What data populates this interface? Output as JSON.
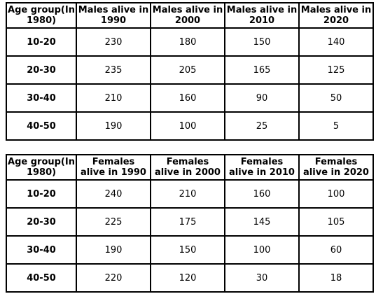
{
  "males_table": {
    "headers": [
      [
        "Age group(In",
        "1980)"
      ],
      [
        "Males alive in",
        "1990"
      ],
      [
        "Males alive in",
        "2000"
      ],
      [
        "Males alive in",
        "2010"
      ],
      [
        "Males alive in",
        "2020"
      ]
    ],
    "rows": [
      {
        "age": "10-20",
        "values": [
          "230",
          "180",
          "150",
          "140"
        ]
      },
      {
        "age": "20-30",
        "values": [
          "235",
          "205",
          "165",
          "125"
        ]
      },
      {
        "age": "30-40",
        "values": [
          "210",
          "160",
          "90",
          "50"
        ]
      },
      {
        "age": "40-50",
        "values": [
          "190",
          "100",
          "25",
          "5"
        ]
      }
    ]
  },
  "females_table": {
    "headers": [
      [
        "Age group(In",
        "1980)"
      ],
      [
        "Females",
        "alive in 1990"
      ],
      [
        "Females",
        "alive in 2000"
      ],
      [
        "Females",
        "alive in 2010"
      ],
      [
        "Females",
        "alive in 2020"
      ]
    ],
    "rows": [
      {
        "age": "10-20",
        "values": [
          "240",
          "210",
          "160",
          "100"
        ]
      },
      {
        "age": "20-30",
        "values": [
          "225",
          "175",
          "145",
          "105"
        ]
      },
      {
        "age": "30-40",
        "values": [
          "190",
          "150",
          "100",
          "60"
        ]
      },
      {
        "age": "40-50",
        "values": [
          "220",
          "120",
          "30",
          "18"
        ]
      }
    ]
  }
}
